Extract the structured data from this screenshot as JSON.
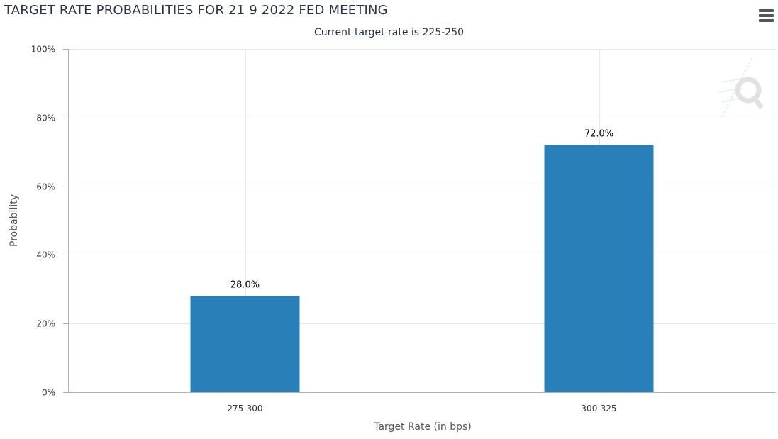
{
  "chart_data": {
    "type": "bar",
    "title": "TARGET RATE PROBABILITIES FOR 21 9 2022 FED MEETING",
    "subtitle": "Current target rate is 225-250",
    "xlabel": "Target Rate (in bps)",
    "ylabel": "Probability",
    "categories": [
      "275-300",
      "300-325"
    ],
    "values": [
      28.0,
      72.0
    ],
    "data_labels": [
      "28.0%",
      "72.0%"
    ],
    "ylim": [
      0,
      100
    ],
    "y_ticks": [
      0,
      20,
      40,
      60,
      80,
      100
    ],
    "y_tick_labels": [
      "0%",
      "20%",
      "40%",
      "60%",
      "80%",
      "100%"
    ],
    "grid": true,
    "legend": "none",
    "bar_color": "#2980b9"
  },
  "toolbar": {
    "menu_icon": "hamburger-menu-icon"
  },
  "watermark": {
    "icon": "quikstrike-q-logo"
  },
  "colors": {
    "grid": "#e6e6e6",
    "axis": "#b0b0b0",
    "text": "#333333",
    "title": "#2b3245"
  }
}
